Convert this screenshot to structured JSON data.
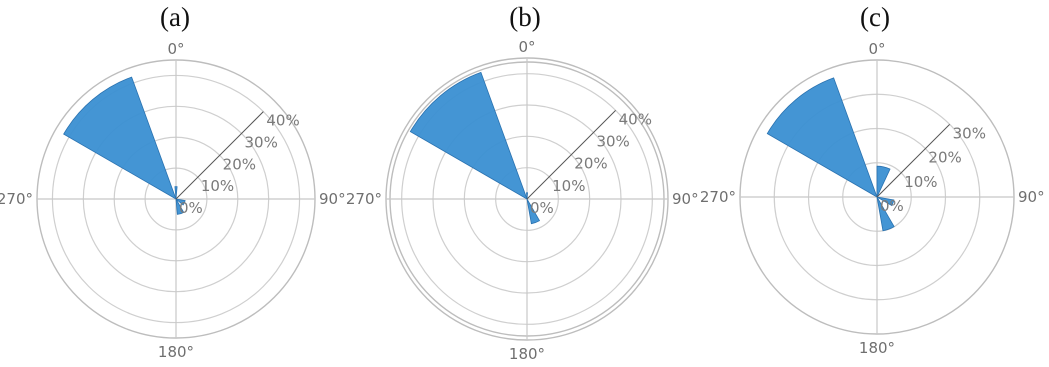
{
  "chart_data": [
    {
      "type": "polar-bar",
      "title": "(a)",
      "direction_labels": [
        "0°",
        "90°",
        "180°",
        "270°"
      ],
      "radial_ticks": [
        "0%",
        "10%",
        "20%",
        "30%",
        "40%"
      ],
      "rmax": 45,
      "sectors": [
        {
          "start": 300,
          "end": 340,
          "value": 42
        },
        {
          "start": 355,
          "end": 5,
          "value": 4
        },
        {
          "start": 100,
          "end": 130,
          "value": 3
        },
        {
          "start": 150,
          "end": 175,
          "value": 5
        }
      ]
    },
    {
      "type": "polar-bar",
      "title": "(b)",
      "direction_labels": [
        "0°",
        "90°",
        "180°",
        "270°"
      ],
      "radial_ticks": [
        "0%",
        "10%",
        "20%",
        "30%",
        "40%"
      ],
      "rmax": 45,
      "sectors": [
        {
          "start": 300,
          "end": 340,
          "value": 43
        },
        {
          "start": 355,
          "end": 5,
          "value": 2
        },
        {
          "start": 150,
          "end": 170,
          "value": 8
        }
      ]
    },
    {
      "type": "polar-bar",
      "title": "(c)",
      "direction_labels": [
        "0°",
        "90°",
        "180°",
        "270°"
      ],
      "radial_ticks": [
        "0%",
        "10%",
        "20%",
        "30%"
      ],
      "rmax": 40,
      "sectors": [
        {
          "start": 300,
          "end": 340,
          "value": 37
        },
        {
          "start": 0,
          "end": 25,
          "value": 9
        },
        {
          "start": 100,
          "end": 120,
          "value": 5
        },
        {
          "start": 150,
          "end": 170,
          "value": 10
        }
      ]
    }
  ]
}
